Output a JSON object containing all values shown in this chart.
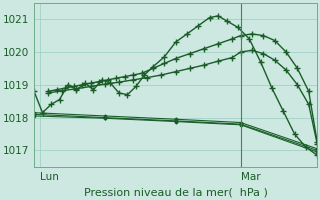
{
  "background_color": "#cce8e0",
  "grid_color": "#99ccc0",
  "line_color": "#1a5c28",
  "xlabel": "Pression niveau de la mer(  hPa )",
  "yticks": [
    1017,
    1018,
    1019,
    1020,
    1021
  ],
  "xtick_labels": [
    "Lun",
    "Mar"
  ],
  "xtick_positions": [
    0.02,
    0.73
  ],
  "vline_x": 0.73,
  "ylim": [
    1016.5,
    1021.5
  ],
  "xlim": [
    0.0,
    1.0
  ],
  "series": [
    {
      "name": "main_wavy",
      "x": [
        0.0,
        0.03,
        0.06,
        0.09,
        0.12,
        0.15,
        0.18,
        0.21,
        0.24,
        0.27,
        0.3,
        0.33,
        0.36,
        0.39,
        0.42,
        0.46,
        0.5,
        0.54,
        0.58,
        0.62,
        0.65,
        0.68,
        0.72,
        0.76,
        0.8,
        0.84,
        0.88,
        0.92,
        0.96,
        1.0
      ],
      "y": [
        1018.8,
        1018.15,
        1018.4,
        1018.55,
        1019.0,
        1018.85,
        1019.05,
        1018.85,
        1019.15,
        1019.05,
        1018.75,
        1018.7,
        1018.95,
        1019.3,
        1019.55,
        1019.85,
        1020.3,
        1020.55,
        1020.8,
        1021.05,
        1021.1,
        1020.95,
        1020.75,
        1020.4,
        1019.7,
        1018.9,
        1018.2,
        1017.5,
        1017.1,
        1016.85
      ],
      "marker": "+",
      "lw": 1.0
    },
    {
      "name": "line2_rising",
      "x": [
        0.05,
        0.08,
        0.11,
        0.14,
        0.17,
        0.2,
        0.23,
        0.26,
        0.29,
        0.32,
        0.35,
        0.38,
        0.42,
        0.46,
        0.5,
        0.55,
        0.6,
        0.65,
        0.7,
        0.73,
        0.77,
        0.81,
        0.85,
        0.89,
        0.93,
        0.97,
        1.0
      ],
      "y": [
        1018.8,
        1018.85,
        1018.9,
        1018.95,
        1019.0,
        1019.05,
        1019.1,
        1019.15,
        1019.2,
        1019.25,
        1019.3,
        1019.35,
        1019.5,
        1019.65,
        1019.8,
        1019.95,
        1020.1,
        1020.25,
        1020.4,
        1020.5,
        1020.55,
        1020.5,
        1020.35,
        1020.0,
        1019.5,
        1018.8,
        1017.25
      ],
      "marker": "+",
      "lw": 1.0
    },
    {
      "name": "line3_rising_parallel",
      "x": [
        0.05,
        0.1,
        0.15,
        0.2,
        0.25,
        0.3,
        0.35,
        0.4,
        0.45,
        0.5,
        0.55,
        0.6,
        0.65,
        0.7,
        0.73,
        0.77,
        0.81,
        0.85,
        0.89,
        0.93,
        0.97,
        1.0
      ],
      "y": [
        1018.75,
        1018.82,
        1018.88,
        1018.95,
        1019.02,
        1019.08,
        1019.15,
        1019.22,
        1019.3,
        1019.4,
        1019.5,
        1019.6,
        1019.72,
        1019.83,
        1020.0,
        1020.05,
        1019.95,
        1019.75,
        1019.45,
        1019.0,
        1018.4,
        1017.2
      ],
      "marker": "+",
      "lw": 1.0
    },
    {
      "name": "flat_bottom1",
      "x": [
        0.0,
        0.25,
        0.5,
        0.73,
        1.0
      ],
      "y": [
        1018.05,
        1017.98,
        1017.88,
        1017.78,
        1016.95
      ],
      "marker": null,
      "lw": 0.8
    },
    {
      "name": "flat_bottom2",
      "x": [
        0.0,
        0.25,
        0.5,
        0.73,
        1.0
      ],
      "y": [
        1018.1,
        1018.0,
        1017.9,
        1017.8,
        1017.0
      ],
      "marker": null,
      "lw": 0.8
    },
    {
      "name": "flat_bottom3",
      "x": [
        0.0,
        0.25,
        0.5,
        0.73,
        1.0
      ],
      "y": [
        1018.15,
        1018.05,
        1017.95,
        1017.85,
        1017.05
      ],
      "marker": null,
      "lw": 0.8
    }
  ],
  "marker_series_indices": [
    0,
    1,
    2
  ],
  "xlabel_fontsize": 8,
  "tick_fontsize": 7.5
}
